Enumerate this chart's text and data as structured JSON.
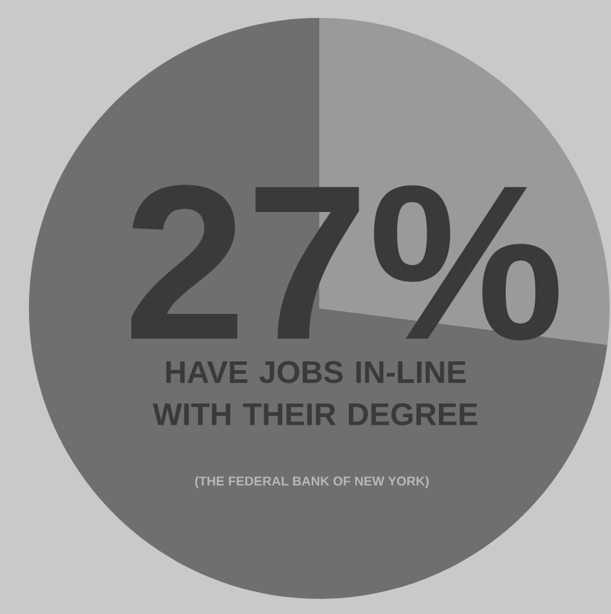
{
  "chart_data": {
    "type": "pie",
    "categories": [
      "HAVE JOBS IN-LINE WITH THEIR DEGREE",
      null
    ],
    "values": [
      27,
      73
    ],
    "colors": [
      "#9a9a9a",
      "#6f6f6f"
    ],
    "value_labels": [
      "27%",
      null
    ],
    "annotations": [
      "(THE FEDERAL BANK OF NEW YORK)"
    ]
  }
}
